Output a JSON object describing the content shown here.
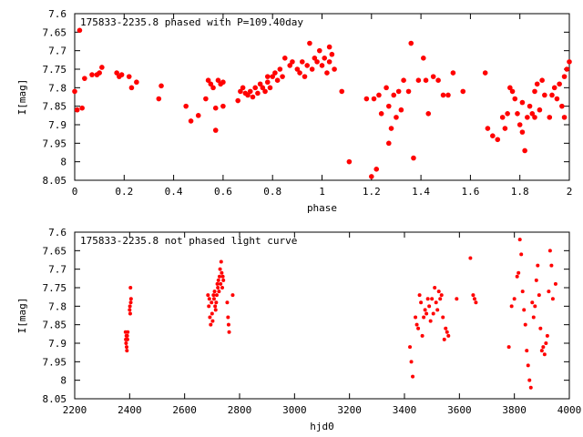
{
  "colors": {
    "points": "#ff0000",
    "axes": "#000000",
    "background": "#ffffff"
  },
  "chart_data": [
    {
      "type": "scatter",
      "title": "175833-2235.8 phased with P=109.40day",
      "xlabel": "phase",
      "ylabel": "I[mag]",
      "xlim": [
        0,
        2
      ],
      "ylim": [
        7.6,
        8.05
      ],
      "y_inverted": true,
      "grid": false,
      "marker": "filled-circle",
      "x_ticks": [
        "0",
        "0.2",
        "0.4",
        "0.6",
        "0.8",
        "1",
        "1.2",
        "1.4",
        "1.6",
        "1.8",
        "2"
      ],
      "y_ticks": [
        "7.6",
        "7.65",
        "7.7",
        "7.75",
        "7.8",
        "7.85",
        "7.9",
        "7.95",
        "8",
        "8.05"
      ],
      "points": [
        [
          0.0,
          7.81
        ],
        [
          0.02,
          7.645
        ],
        [
          0.01,
          7.86
        ],
        [
          0.03,
          7.855
        ],
        [
          0.04,
          7.775
        ],
        [
          0.07,
          7.765
        ],
        [
          0.09,
          7.765
        ],
        [
          0.1,
          7.76
        ],
        [
          0.11,
          7.745
        ],
        [
          0.17,
          7.76
        ],
        [
          0.18,
          7.77
        ],
        [
          0.19,
          7.765
        ],
        [
          0.22,
          7.77
        ],
        [
          0.23,
          7.8
        ],
        [
          0.25,
          7.785
        ],
        [
          0.34,
          7.83
        ],
        [
          0.35,
          7.795
        ],
        [
          0.45,
          7.85
        ],
        [
          0.47,
          7.89
        ],
        [
          0.5,
          7.875
        ],
        [
          0.53,
          7.83
        ],
        [
          0.54,
          7.78
        ],
        [
          0.55,
          7.79
        ],
        [
          0.56,
          7.8
        ],
        [
          0.57,
          7.855
        ],
        [
          0.57,
          7.915
        ],
        [
          0.58,
          7.78
        ],
        [
          0.59,
          7.79
        ],
        [
          0.6,
          7.785
        ],
        [
          0.6,
          7.85
        ],
        [
          0.66,
          7.835
        ],
        [
          0.67,
          7.81
        ],
        [
          0.68,
          7.8
        ],
        [
          0.69,
          7.815
        ],
        [
          0.7,
          7.82
        ],
        [
          0.71,
          7.81
        ],
        [
          0.72,
          7.825
        ],
        [
          0.73,
          7.8
        ],
        [
          0.74,
          7.815
        ],
        [
          0.75,
          7.79
        ],
        [
          0.76,
          7.8
        ],
        [
          0.77,
          7.81
        ],
        [
          0.78,
          7.785
        ],
        [
          0.78,
          7.77
        ],
        [
          0.79,
          7.8
        ],
        [
          0.8,
          7.77
        ],
        [
          0.81,
          7.76
        ],
        [
          0.82,
          7.78
        ],
        [
          0.83,
          7.75
        ],
        [
          0.84,
          7.77
        ],
        [
          0.85,
          7.72
        ],
        [
          0.87,
          7.74
        ],
        [
          0.88,
          7.73
        ],
        [
          0.9,
          7.75
        ],
        [
          0.91,
          7.76
        ],
        [
          0.92,
          7.73
        ],
        [
          0.93,
          7.77
        ],
        [
          0.94,
          7.74
        ],
        [
          0.95,
          7.68
        ],
        [
          0.96,
          7.75
        ],
        [
          0.97,
          7.72
        ],
        [
          0.98,
          7.73
        ],
        [
          0.99,
          7.7
        ],
        [
          1.0,
          7.74
        ],
        [
          1.01,
          7.72
        ],
        [
          1.02,
          7.76
        ],
        [
          1.03,
          7.69
        ],
        [
          1.03,
          7.73
        ],
        [
          1.04,
          7.71
        ],
        [
          1.05,
          7.75
        ],
        [
          1.08,
          7.81
        ],
        [
          1.11,
          8.0
        ],
        [
          1.18,
          7.83
        ],
        [
          1.2,
          8.04
        ],
        [
          1.21,
          7.83
        ],
        [
          1.22,
          8.02
        ],
        [
          1.23,
          7.82
        ],
        [
          1.24,
          7.87
        ],
        [
          1.26,
          7.8
        ],
        [
          1.27,
          7.85
        ],
        [
          1.27,
          7.95
        ],
        [
          1.28,
          7.91
        ],
        [
          1.29,
          7.82
        ],
        [
          1.3,
          7.88
        ],
        [
          1.31,
          7.81
        ],
        [
          1.32,
          7.86
        ],
        [
          1.33,
          7.78
        ],
        [
          1.35,
          7.81
        ],
        [
          1.36,
          7.68
        ],
        [
          1.37,
          7.99
        ],
        [
          1.39,
          7.78
        ],
        [
          1.41,
          7.72
        ],
        [
          1.42,
          7.78
        ],
        [
          1.43,
          7.87
        ],
        [
          1.45,
          7.77
        ],
        [
          1.47,
          7.78
        ],
        [
          1.49,
          7.82
        ],
        [
          1.51,
          7.82
        ],
        [
          1.53,
          7.76
        ],
        [
          1.57,
          7.81
        ],
        [
          1.66,
          7.76
        ],
        [
          1.67,
          7.91
        ],
        [
          1.69,
          7.93
        ],
        [
          1.71,
          7.94
        ],
        [
          1.73,
          7.88
        ],
        [
          1.74,
          7.91
        ],
        [
          1.75,
          7.87
        ],
        [
          1.76,
          7.8
        ],
        [
          1.77,
          7.81
        ],
        [
          1.78,
          7.83
        ],
        [
          1.79,
          7.87
        ],
        [
          1.8,
          7.9
        ],
        [
          1.81,
          7.92
        ],
        [
          1.81,
          7.84
        ],
        [
          1.82,
          7.97
        ],
        [
          1.83,
          7.88
        ],
        [
          1.84,
          7.85
        ],
        [
          1.85,
          7.87
        ],
        [
          1.86,
          7.81
        ],
        [
          1.86,
          7.88
        ],
        [
          1.87,
          7.79
        ],
        [
          1.88,
          7.86
        ],
        [
          1.89,
          7.78
        ],
        [
          1.9,
          7.82
        ],
        [
          1.92,
          7.88
        ],
        [
          1.93,
          7.82
        ],
        [
          1.94,
          7.8
        ],
        [
          1.95,
          7.83
        ],
        [
          1.96,
          7.79
        ],
        [
          1.97,
          7.85
        ],
        [
          1.98,
          7.77
        ],
        [
          1.98,
          7.88
        ],
        [
          1.99,
          7.75
        ],
        [
          2.0,
          7.73
        ]
      ]
    },
    {
      "type": "scatter",
      "title": "175833-2235.8 not phased light curve",
      "xlabel": "hjd0",
      "ylabel": "I[mag]",
      "xlim": [
        2200,
        4000
      ],
      "ylim": [
        7.6,
        8.05
      ],
      "y_inverted": true,
      "grid": false,
      "marker": "filled-circle",
      "x_ticks": [
        "2200",
        "2400",
        "2600",
        "2800",
        "3000",
        "3200",
        "3400",
        "3600",
        "3800",
        "4000"
      ],
      "y_ticks": [
        "7.6",
        "7.65",
        "7.7",
        "7.75",
        "7.8",
        "7.85",
        "7.9",
        "7.95",
        "8",
        "8.05"
      ],
      "points": [
        [
          2385,
          7.87
        ],
        [
          2386,
          7.89
        ],
        [
          2387,
          7.9
        ],
        [
          2388,
          7.88
        ],
        [
          2389,
          7.91
        ],
        [
          2390,
          7.92
        ],
        [
          2391,
          7.88
        ],
        [
          2392,
          7.89
        ],
        [
          2393,
          7.87
        ],
        [
          2400,
          7.81
        ],
        [
          2401,
          7.8
        ],
        [
          2402,
          7.82
        ],
        [
          2403,
          7.75
        ],
        [
          2404,
          7.79
        ],
        [
          2405,
          7.78
        ],
        [
          2685,
          7.77
        ],
        [
          2688,
          7.8
        ],
        [
          2690,
          7.78
        ],
        [
          2692,
          7.83
        ],
        [
          2695,
          7.85
        ],
        [
          2698,
          7.79
        ],
        [
          2700,
          7.82
        ],
        [
          2702,
          7.84
        ],
        [
          2705,
          7.77
        ],
        [
          2707,
          7.78
        ],
        [
          2709,
          7.76
        ],
        [
          2711,
          7.8
        ],
        [
          2713,
          7.81
        ],
        [
          2715,
          7.79
        ],
        [
          2717,
          7.77
        ],
        [
          2719,
          7.74
        ],
        [
          2721,
          7.75
        ],
        [
          2723,
          7.73
        ],
        [
          2725,
          7.76
        ],
        [
          2727,
          7.72
        ],
        [
          2729,
          7.7
        ],
        [
          2731,
          7.74
        ],
        [
          2733,
          7.68
        ],
        [
          2735,
          7.71
        ],
        [
          2737,
          7.75
        ],
        [
          2739,
          7.72
        ],
        [
          2741,
          7.73
        ],
        [
          2755,
          7.79
        ],
        [
          2758,
          7.83
        ],
        [
          2760,
          7.85
        ],
        [
          2762,
          7.87
        ],
        [
          2775,
          7.77
        ],
        [
          3420,
          7.91
        ],
        [
          3425,
          7.95
        ],
        [
          3430,
          7.99
        ],
        [
          3440,
          7.83
        ],
        [
          3445,
          7.85
        ],
        [
          3450,
          7.86
        ],
        [
          3455,
          7.77
        ],
        [
          3460,
          7.79
        ],
        [
          3465,
          7.88
        ],
        [
          3470,
          7.83
        ],
        [
          3475,
          7.81
        ],
        [
          3480,
          7.82
        ],
        [
          3485,
          7.78
        ],
        [
          3490,
          7.8
        ],
        [
          3495,
          7.84
        ],
        [
          3500,
          7.78
        ],
        [
          3505,
          7.82
        ],
        [
          3510,
          7.75
        ],
        [
          3515,
          7.79
        ],
        [
          3520,
          7.81
        ],
        [
          3525,
          7.76
        ],
        [
          3530,
          7.78
        ],
        [
          3535,
          7.77
        ],
        [
          3540,
          7.83
        ],
        [
          3545,
          7.89
        ],
        [
          3550,
          7.86
        ],
        [
          3555,
          7.87
        ],
        [
          3560,
          7.88
        ],
        [
          3590,
          7.78
        ],
        [
          3640,
          7.67
        ],
        [
          3650,
          7.77
        ],
        [
          3655,
          7.78
        ],
        [
          3660,
          7.79
        ],
        [
          3780,
          7.91
        ],
        [
          3790,
          7.8
        ],
        [
          3800,
          7.78
        ],
        [
          3810,
          7.72
        ],
        [
          3815,
          7.71
        ],
        [
          3820,
          7.62
        ],
        [
          3825,
          7.66
        ],
        [
          3830,
          7.76
        ],
        [
          3835,
          7.81
        ],
        [
          3840,
          7.85
        ],
        [
          3845,
          7.92
        ],
        [
          3850,
          7.96
        ],
        [
          3855,
          8.0
        ],
        [
          3860,
          8.02
        ],
        [
          3865,
          7.79
        ],
        [
          3870,
          7.83
        ],
        [
          3875,
          7.8
        ],
        [
          3880,
          7.73
        ],
        [
          3885,
          7.69
        ],
        [
          3890,
          7.77
        ],
        [
          3895,
          7.86
        ],
        [
          3900,
          7.92
        ],
        [
          3905,
          7.91
        ],
        [
          3910,
          7.93
        ],
        [
          3915,
          7.9
        ],
        [
          3920,
          7.88
        ],
        [
          3925,
          7.76
        ],
        [
          3930,
          7.65
        ],
        [
          3935,
          7.69
        ],
        [
          3940,
          7.78
        ],
        [
          3950,
          7.74
        ]
      ]
    }
  ]
}
